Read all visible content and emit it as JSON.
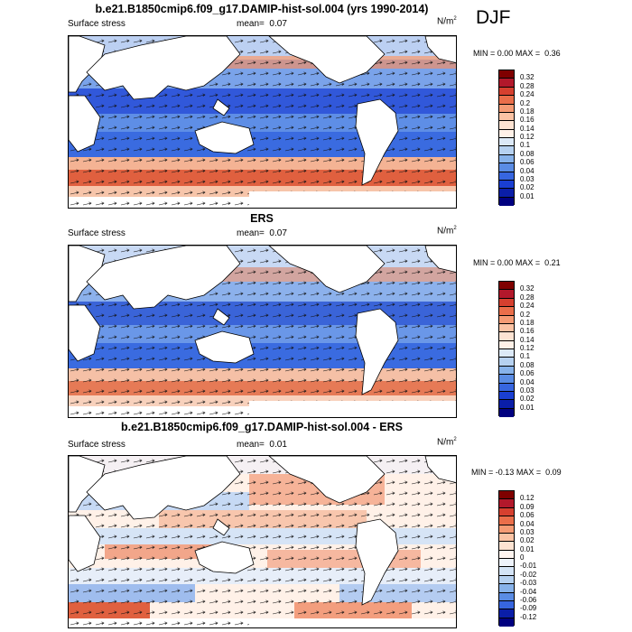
{
  "season": "DJF",
  "panels": [
    {
      "title": "b.e21.B1850cmip6.f09_g17.DAMIP-hist-sol.004 (yrs 1990-2014)",
      "left_label": "Surface stress",
      "mean_label": "mean=",
      "mean": "0.07",
      "units": "N/m",
      "units_sup": "2",
      "min_label": "MIN =",
      "min": "0.00",
      "max_label": "MAX =",
      "max": "0.36",
      "colorbar_labels": [
        "0.32",
        "0.28",
        "0.24",
        "0.2",
        "0.18",
        "0.16",
        "0.14",
        "0.12",
        "0.1",
        "0.08",
        "0.06",
        "0.04",
        "0.03",
        "0.02",
        "0.01"
      ],
      "colorbar_colors": [
        "#7f0000",
        "#b2182b",
        "#d6402f",
        "#ea6e4a",
        "#f59b74",
        "#fbc3a4",
        "#fde3d2",
        "#fff1e8",
        "#dce9f7",
        "#b6d1f0",
        "#87b2ea",
        "#5a8ce4",
        "#3766e0",
        "#1a3fd2",
        "#0a1ea8",
        "#000080"
      ]
    },
    {
      "title": "ERS",
      "left_label": "Surface stress",
      "mean_label": "mean=",
      "mean": "0.07",
      "units": "N/m",
      "units_sup": "2",
      "min_label": "MIN =",
      "min": "0.00",
      "max_label": "MAX =",
      "max": "0.21",
      "colorbar_labels": [
        "0.32",
        "0.28",
        "0.24",
        "0.2",
        "0.18",
        "0.16",
        "0.14",
        "0.12",
        "0.1",
        "0.08",
        "0.06",
        "0.04",
        "0.03",
        "0.02",
        "0.01"
      ],
      "colorbar_colors": [
        "#7f0000",
        "#b2182b",
        "#d6402f",
        "#ea6e4a",
        "#f59b74",
        "#fbc3a4",
        "#fde3d2",
        "#fff1e8",
        "#dce9f7",
        "#b6d1f0",
        "#87b2ea",
        "#5a8ce4",
        "#3766e0",
        "#1a3fd2",
        "#0a1ea8",
        "#000080"
      ]
    },
    {
      "title": "b.e21.B1850cmip6.f09_g17.DAMIP-hist-sol.004 - ERS",
      "left_label": "Surface stress",
      "mean_label": "mean=",
      "mean": "0.01",
      "units": "N/m",
      "units_sup": "2",
      "min_label": "MIN =",
      "min": "-0.13",
      "max_label": "MAX =",
      "max": "0.09",
      "colorbar_labels": [
        "0.12",
        "0.09",
        "0.06",
        "0.04",
        "0.03",
        "0.02",
        "0.01",
        "0",
        "-0.01",
        "-0.02",
        "-0.03",
        "-0.04",
        "-0.06",
        "-0.09",
        "-0.12"
      ],
      "colorbar_colors": [
        "#7f0000",
        "#b2182b",
        "#d6402f",
        "#ea6e4a",
        "#f59b74",
        "#fbc3a4",
        "#fde3d2",
        "#fff5f0",
        "#eef3fb",
        "#d4e4f6",
        "#b6d1f0",
        "#87b2ea",
        "#5a8ce4",
        "#3766e0",
        "#0a1ea8",
        "#000080"
      ]
    }
  ]
}
